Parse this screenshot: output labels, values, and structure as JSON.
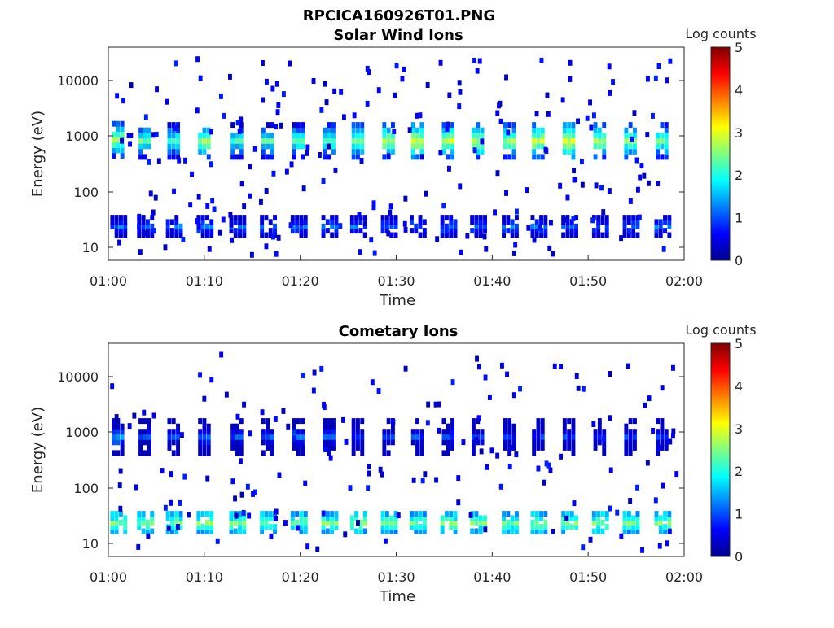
{
  "figure_title": "RPCICA160926T01.PNG",
  "colormap_stops": [
    "#00008f",
    "#0000ff",
    "#0080ff",
    "#00ffff",
    "#80ff80",
    "#ffff00",
    "#ff8000",
    "#ff0000",
    "#800000"
  ],
  "chart_data": [
    {
      "type": "heatmap",
      "title": "Solar Wind Ions",
      "xlabel": "Time",
      "ylabel": "Energy (eV)",
      "x_ticks": [
        "01:00",
        "01:10",
        "01:20",
        "01:30",
        "01:40",
        "01:50",
        "02:00"
      ],
      "x_range_minutes": [
        0,
        60
      ],
      "y_ticks": [
        "10",
        "100",
        "1000",
        "10000"
      ],
      "y_scale": "log",
      "y_range_eV": [
        6,
        45000
      ],
      "colorbar": {
        "label": "Log counts",
        "ticks": [
          "0",
          "1",
          "2",
          "3",
          "4",
          "5"
        ],
        "range": [
          0,
          5
        ]
      },
      "bursts": [
        {
          "t": 0.8,
          "e": 1050,
          "v": 2.6
        },
        {
          "t": 3.6,
          "e": 1000,
          "v": 2.3
        },
        {
          "t": 6.6,
          "e": 1000,
          "v": 2.1
        },
        {
          "t": 9.8,
          "e": 1000,
          "v": 2.6
        },
        {
          "t": 13.2,
          "e": 1000,
          "v": 2.1
        },
        {
          "t": 16.4,
          "e": 1000,
          "v": 2.2
        },
        {
          "t": 19.6,
          "e": 1000,
          "v": 2.2
        },
        {
          "t": 22.8,
          "e": 1000,
          "v": 2.3
        },
        {
          "t": 25.8,
          "e": 1000,
          "v": 2.5
        },
        {
          "t": 29.0,
          "e": 1000,
          "v": 2.7
        },
        {
          "t": 32.0,
          "e": 1000,
          "v": 2.9
        },
        {
          "t": 35.2,
          "e": 1000,
          "v": 2.8
        },
        {
          "t": 38.3,
          "e": 1000,
          "v": 2.7
        },
        {
          "t": 41.6,
          "e": 1000,
          "v": 2.6
        },
        {
          "t": 44.6,
          "e": 1000,
          "v": 2.8
        },
        {
          "t": 47.8,
          "e": 1000,
          "v": 2.9
        },
        {
          "t": 51.0,
          "e": 1000,
          "v": 2.6
        },
        {
          "t": 54.2,
          "e": 1000,
          "v": 2.5
        },
        {
          "t": 57.5,
          "e": 1000,
          "v": 2.4
        }
      ],
      "low_band": {
        "e": 28,
        "v": 1.1
      },
      "noise_count": 220
    },
    {
      "type": "heatmap",
      "title": "Cometary Ions",
      "xlabel": "Time",
      "ylabel": "Energy (eV)",
      "x_ticks": [
        "01:00",
        "01:10",
        "01:20",
        "01:30",
        "01:40",
        "01:50",
        "02:00"
      ],
      "x_range_minutes": [
        0,
        60
      ],
      "y_ticks": [
        "10",
        "100",
        "1000",
        "10000"
      ],
      "y_scale": "log",
      "y_range_eV": [
        6,
        45000
      ],
      "colorbar": {
        "label": "Log counts",
        "ticks": [
          "0",
          "1",
          "2",
          "3",
          "4",
          "5"
        ],
        "range": [
          0,
          5
        ]
      },
      "bursts": [
        {
          "t": 0.8,
          "e": 1000,
          "v": 1.4
        },
        {
          "t": 3.6,
          "e": 1000,
          "v": 1.0
        },
        {
          "t": 6.6,
          "e": 1000,
          "v": 1.0
        },
        {
          "t": 9.8,
          "e": 1000,
          "v": 1.1
        },
        {
          "t": 13.2,
          "e": 1000,
          "v": 1.0
        },
        {
          "t": 16.4,
          "e": 1000,
          "v": 1.0
        },
        {
          "t": 19.6,
          "e": 1000,
          "v": 1.2
        },
        {
          "t": 22.8,
          "e": 1000,
          "v": 1.1
        },
        {
          "t": 25.8,
          "e": 1000,
          "v": 0.8
        },
        {
          "t": 29.0,
          "e": 1000,
          "v": 0.8
        },
        {
          "t": 32.0,
          "e": 1000,
          "v": 0.9
        },
        {
          "t": 35.2,
          "e": 1000,
          "v": 0.8
        },
        {
          "t": 38.3,
          "e": 1000,
          "v": 0.8
        },
        {
          "t": 41.6,
          "e": 1000,
          "v": 0.8
        },
        {
          "t": 44.6,
          "e": 1000,
          "v": 0.8
        },
        {
          "t": 47.8,
          "e": 1000,
          "v": 0.8
        },
        {
          "t": 51.0,
          "e": 1000,
          "v": 0.8
        },
        {
          "t": 54.2,
          "e": 1000,
          "v": 0.8
        },
        {
          "t": 57.5,
          "e": 1000,
          "v": 0.8
        }
      ],
      "low_band": {
        "e": 28,
        "v": 2.4
      },
      "noise_count": 160
    }
  ]
}
